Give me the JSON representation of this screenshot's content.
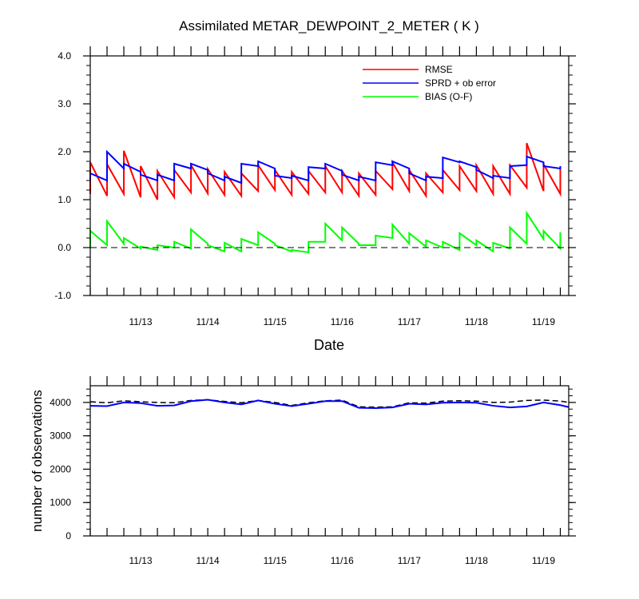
{
  "chart_data": [
    {
      "type": "line",
      "title": "Assimilated METAR_DEWPOINT_2_METER ( K )",
      "xlabel": "Date",
      "ylabel": "",
      "ylim": [
        -1.0,
        4.0
      ],
      "yticks": [
        "-1.0",
        "0.0",
        "1.0",
        "2.0",
        "3.0",
        "4.0"
      ],
      "xlim": [
        "11/12 06:00",
        "11/19 09:00"
      ],
      "xticks": [
        "11/13",
        "11/14",
        "11/15",
        "11/16",
        "11/17",
        "11/18",
        "11/19"
      ],
      "legend": "top-right",
      "zero_line": "dashed",
      "series": [
        {
          "name": "RMSE",
          "color": "#ff0000",
          "points": [
            [
              "11/12 06:00",
              1.12,
              1.78
            ],
            [
              "11/12 12:00",
              1.08,
              1.74
            ],
            [
              "11/12 18:00",
              1.12,
              2.02
            ],
            [
              "11/13 00:00",
              1.05,
              1.7
            ],
            [
              "11/13 06:00",
              1.0,
              1.6
            ],
            [
              "11/13 12:00",
              1.05,
              1.62
            ],
            [
              "11/13 18:00",
              1.15,
              1.72
            ],
            [
              "11/14 00:00",
              1.13,
              1.64
            ],
            [
              "11/14 06:00",
              1.1,
              1.58
            ],
            [
              "11/14 12:00",
              1.08,
              1.55
            ],
            [
              "11/14 18:00",
              1.18,
              1.72
            ],
            [
              "11/15 00:00",
              1.2,
              1.62
            ],
            [
              "11/15 06:00",
              1.1,
              1.58
            ],
            [
              "11/15 12:00",
              1.12,
              1.6
            ],
            [
              "11/15 18:00",
              1.15,
              1.7
            ],
            [
              "11/16 00:00",
              1.15,
              1.6
            ],
            [
              "11/16 06:00",
              1.08,
              1.55
            ],
            [
              "11/16 12:00",
              1.1,
              1.6
            ],
            [
              "11/16 18:00",
              1.22,
              1.78
            ],
            [
              "11/17 00:00",
              1.18,
              1.62
            ],
            [
              "11/17 06:00",
              1.08,
              1.55
            ],
            [
              "11/17 12:00",
              1.15,
              1.62
            ],
            [
              "11/17 18:00",
              1.2,
              1.7
            ],
            [
              "11/18 00:00",
              1.18,
              1.72
            ],
            [
              "11/18 06:00",
              1.12,
              1.7
            ],
            [
              "11/18 12:00",
              1.12,
              1.72
            ],
            [
              "11/18 18:00",
              1.25,
              2.18
            ],
            [
              "11/19 00:00",
              1.18,
              1.74
            ],
            [
              "11/19 06:00",
              1.12,
              1.7
            ]
          ]
        },
        {
          "name": "SPRD + ob error",
          "color": "#0000ff",
          "points": [
            [
              "11/12 06:00",
              1.42,
              1.55
            ],
            [
              "11/12 12:00",
              1.4,
              2.0
            ],
            [
              "11/12 18:00",
              1.65,
              1.75
            ],
            [
              "11/13 00:00",
              1.58,
              1.52
            ],
            [
              "11/13 06:00",
              1.4,
              1.52
            ],
            [
              "11/13 12:00",
              1.4,
              1.75
            ],
            [
              "11/13 18:00",
              1.65,
              1.75
            ],
            [
              "11/14 00:00",
              1.62,
              1.55
            ],
            [
              "11/14 06:00",
              1.4,
              1.48
            ],
            [
              "11/14 12:00",
              1.35,
              1.75
            ],
            [
              "11/14 18:00",
              1.7,
              1.8
            ],
            [
              "11/15 00:00",
              1.65,
              1.5
            ],
            [
              "11/15 06:00",
              1.45,
              1.5
            ],
            [
              "11/15 12:00",
              1.4,
              1.68
            ],
            [
              "11/15 18:00",
              1.65,
              1.75
            ],
            [
              "11/16 00:00",
              1.6,
              1.52
            ],
            [
              "11/16 06:00",
              1.4,
              1.48
            ],
            [
              "11/16 12:00",
              1.4,
              1.78
            ],
            [
              "11/16 18:00",
              1.72,
              1.8
            ],
            [
              "11/17 00:00",
              1.65,
              1.55
            ],
            [
              "11/17 06:00",
              1.4,
              1.48
            ],
            [
              "11/17 12:00",
              1.45,
              1.88
            ],
            [
              "11/17 18:00",
              1.78,
              1.8
            ],
            [
              "11/18 00:00",
              1.68,
              1.62
            ],
            [
              "11/18 06:00",
              1.45,
              1.5
            ],
            [
              "11/18 12:00",
              1.45,
              1.7
            ],
            [
              "11/18 18:00",
              1.72,
              1.9
            ],
            [
              "11/19 00:00",
              1.78,
              1.7
            ],
            [
              "11/19 06:00",
              1.65,
              1.7
            ]
          ]
        },
        {
          "name": "BIAS (O-F)",
          "color": "#00ff00",
          "points": [
            [
              "11/12 06:00",
              0.0,
              0.35
            ],
            [
              "11/12 12:00",
              0.05,
              0.55
            ],
            [
              "11/12 18:00",
              0.08,
              0.2
            ],
            [
              "11/13 00:00",
              -0.02,
              0.02
            ],
            [
              "11/13 06:00",
              -0.05,
              0.05
            ],
            [
              "11/13 12:00",
              0.0,
              0.12
            ],
            [
              "11/13 18:00",
              -0.02,
              0.38
            ],
            [
              "11/14 00:00",
              0.08,
              0.05
            ],
            [
              "11/14 06:00",
              -0.08,
              0.1
            ],
            [
              "11/14 12:00",
              -0.08,
              0.18
            ],
            [
              "11/14 18:00",
              0.05,
              0.32
            ],
            [
              "11/15 00:00",
              0.08,
              0.05
            ],
            [
              "11/15 06:00",
              -0.08,
              -0.05
            ],
            [
              "11/15 12:00",
              -0.1,
              0.12
            ],
            [
              "11/15 18:00",
              0.12,
              0.5
            ],
            [
              "11/16 00:00",
              0.15,
              0.42
            ],
            [
              "11/16 06:00",
              0.08,
              0.05
            ],
            [
              "11/16 12:00",
              0.05,
              0.25
            ],
            [
              "11/16 18:00",
              0.2,
              0.48
            ],
            [
              "11/17 00:00",
              0.08,
              0.3
            ],
            [
              "11/17 06:00",
              0.02,
              0.15
            ],
            [
              "11/17 12:00",
              0.0,
              0.12
            ],
            [
              "11/17 18:00",
              -0.05,
              0.3
            ],
            [
              "11/18 00:00",
              0.05,
              0.15
            ],
            [
              "11/18 06:00",
              -0.08,
              0.1
            ],
            [
              "11/18 12:00",
              -0.02,
              0.42
            ],
            [
              "11/18 18:00",
              0.08,
              0.72
            ],
            [
              "11/19 00:00",
              0.18,
              0.35
            ],
            [
              "11/19 06:00",
              -0.02,
              0.32
            ]
          ]
        }
      ]
    },
    {
      "type": "line",
      "title": "",
      "xlabel": "",
      "ylabel": "number of observations",
      "ylim": [
        0,
        4500
      ],
      "yticks": [
        "0",
        "1000",
        "2000",
        "3000",
        "4000"
      ],
      "xlim": [
        "11/12 06:00",
        "11/19 09:00"
      ],
      "xticks": [
        "11/13",
        "11/14",
        "11/15",
        "11/16",
        "11/17",
        "11/18",
        "11/19"
      ],
      "series": [
        {
          "name": "",
          "color": "#000000",
          "style": "dashed",
          "x": [
            "11/12 06:00",
            "11/12 12:00",
            "11/12 18:00",
            "11/13 00:00",
            "11/13 06:00",
            "11/13 12:00",
            "11/13 18:00",
            "11/14 00:00",
            "11/14 06:00",
            "11/14 12:00",
            "11/14 18:00",
            "11/15 00:00",
            "11/15 06:00",
            "11/15 12:00",
            "11/15 18:00",
            "11/16 00:00",
            "11/16 06:00",
            "11/16 12:00",
            "11/16 18:00",
            "11/17 00:00",
            "11/17 06:00",
            "11/17 12:00",
            "11/17 18:00",
            "11/18 00:00",
            "11/18 06:00",
            "11/18 12:00",
            "11/18 18:00",
            "11/19 00:00",
            "11/19 06:00",
            "11/19 09:00"
          ],
          "values": [
            4020,
            3990,
            4050,
            4020,
            4000,
            3990,
            4060,
            4080,
            4030,
            3990,
            4060,
            4000,
            3910,
            3990,
            4050,
            4070,
            3870,
            3860,
            3870,
            3990,
            3980,
            4040,
            4050,
            4040,
            4000,
            4010,
            4060,
            4070,
            4040,
            4000
          ]
        },
        {
          "name": "",
          "color": "#0000ff",
          "style": "solid",
          "x": [
            "11/12 06:00",
            "11/12 12:00",
            "11/12 18:00",
            "11/13 00:00",
            "11/13 06:00",
            "11/13 12:00",
            "11/13 18:00",
            "11/14 00:00",
            "11/14 06:00",
            "11/14 12:00",
            "11/14 18:00",
            "11/15 00:00",
            "11/15 06:00",
            "11/15 12:00",
            "11/15 18:00",
            "11/16 00:00",
            "11/16 06:00",
            "11/16 12:00",
            "11/16 18:00",
            "11/17 00:00",
            "11/17 06:00",
            "11/17 12:00",
            "11/17 18:00",
            "11/18 00:00",
            "11/18 06:00",
            "11/18 12:00",
            "11/18 18:00",
            "11/19 00:00",
            "11/19 06:00",
            "11/19 09:00"
          ],
          "values": [
            3900,
            3890,
            4000,
            3980,
            3900,
            3910,
            4040,
            4080,
            4000,
            3940,
            4060,
            3960,
            3890,
            3960,
            4040,
            4040,
            3840,
            3830,
            3850,
            3960,
            3940,
            3990,
            4000,
            3990,
            3900,
            3850,
            3880,
            4000,
            3920,
            3860
          ]
        }
      ]
    }
  ]
}
